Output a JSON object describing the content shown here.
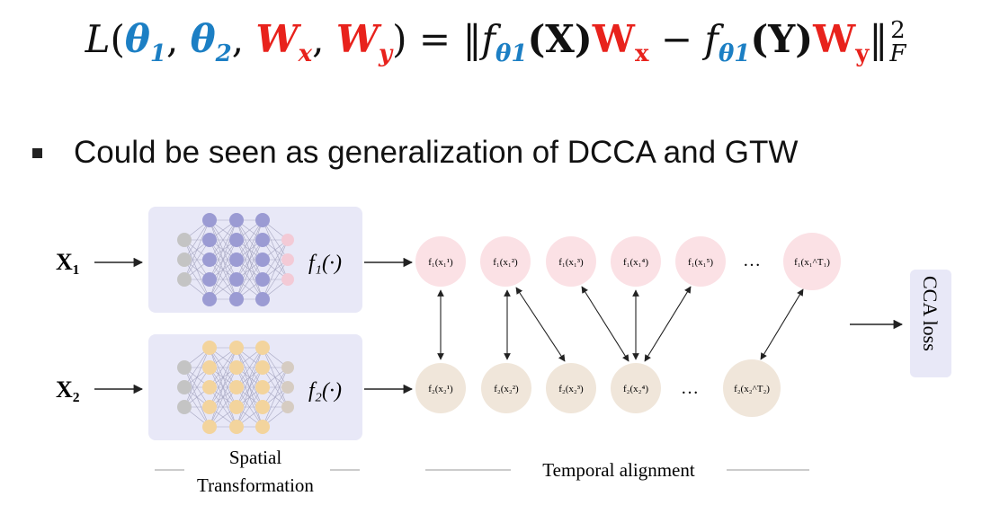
{
  "formula": {
    "L": "L",
    "theta": "θ",
    "W": "W",
    "s1": "1",
    "s2": "2",
    "sx": "x",
    "sy": "y",
    "eq": "=",
    "norm": "‖",
    "f": "f",
    "X": "(X)",
    "Y": "(Y)",
    "minus": "−",
    "sup2": "2",
    "subF": "F"
  },
  "bullet": "Could be seen as generalization of DCCA and GTW",
  "diagram": {
    "input1": "X₁",
    "input2": "X₂",
    "func1": "f₁(·)",
    "func2": "f₂(·)",
    "row1_nodes": [
      "f₁(x₁¹)",
      "f₁(x₁²)",
      "f₁(x₁³)",
      "f₁(x₁⁴)",
      "f₁(x₁⁵)",
      "…",
      "f₁(x₁^T₁)"
    ],
    "row2_nodes": [
      "f₂(x₂¹)",
      "f₂(x₂²)",
      "f₂(x₂³)",
      "f₂(x₂⁴)",
      "…",
      "f₂(x₂^T₂)"
    ],
    "spatial_label_1": "Spatial",
    "spatial_label_2": "Transformation",
    "temporal_label": "Temporal alignment",
    "loss_label": "CCA loss",
    "colors": {
      "panel": "#e8e8f7",
      "net1_node": "#9b9bd3",
      "net2_node": "#f3d49d",
      "grey_node": "#c4c4c4",
      "pink_out": "#f3cad6",
      "row1_fill": "#fbe1e5",
      "row2_fill": "#f0e6da",
      "loss_fill": "#e8e8f7"
    }
  }
}
